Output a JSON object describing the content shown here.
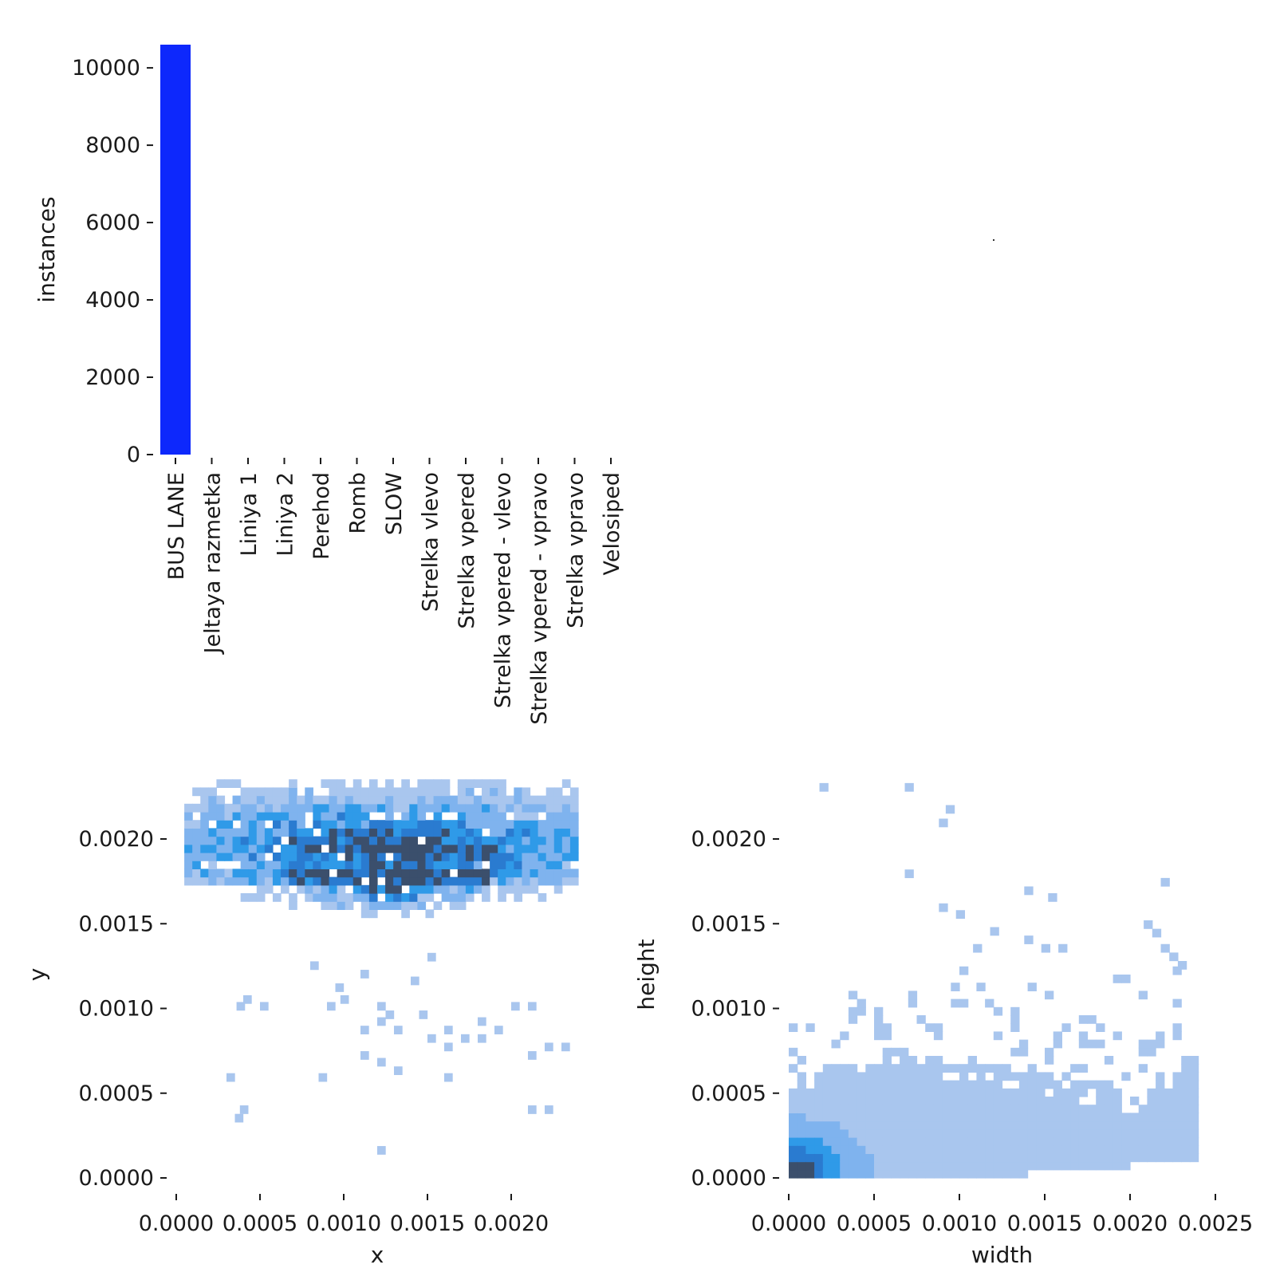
{
  "chart_data": [
    {
      "id": "class_counts",
      "type": "bar",
      "title": "",
      "xlabel": "",
      "ylabel": "instances",
      "ylim": [
        0,
        10600
      ],
      "yticks": [
        0,
        2000,
        4000,
        6000,
        8000,
        10000
      ],
      "ytick_labels": [
        "0",
        "2000",
        "4000",
        "6000",
        "8000",
        "10000"
      ],
      "categories": [
        "BUS LANE",
        "Jeltaya razmetka",
        "Liniya 1",
        "Liniya 2",
        "Perehod",
        "Romb",
        "SLOW",
        "Strelka vlevo",
        "Strelka vpered",
        "Strelka vpered - vlevo",
        "Strelka vpered - vpravo",
        "Strelka vpravo",
        "Velosiped"
      ],
      "values": [
        10600,
        0,
        0,
        0,
        0,
        0,
        0,
        0,
        0,
        0,
        0,
        0,
        0
      ],
      "color": "#0d28fc",
      "grid": false
    },
    {
      "id": "box_preview",
      "type": "scatter",
      "title": "",
      "note_points": [
        [
          0.5,
          0.5
        ]
      ],
      "color": "#333333"
    },
    {
      "id": "xy_hist",
      "type": "heatmap",
      "title": "",
      "xlabel": "x",
      "ylabel": "y",
      "xlim": [
        0,
        0.0024
      ],
      "ylim": [
        0,
        0.0024
      ],
      "xticks": [
        0,
        0.0005,
        0.001,
        0.0015,
        0.002
      ],
      "xtick_labels": [
        "0.0000",
        "0.0005",
        "0.0010",
        "0.0015",
        "0.0020"
      ],
      "yticks": [
        0,
        0.0005,
        0.001,
        0.0015,
        0.002
      ],
      "ytick_labels": [
        "0.0000",
        "0.0005",
        "0.0010",
        "0.0015",
        "0.0020"
      ],
      "bins": 50,
      "dense_region": {
        "x": [
          3e-05,
          0.00238
        ],
        "y": [
          0.00152,
          0.00235
        ],
        "center": [
          0.00128,
          0.00183
        ]
      },
      "sparse_points": [
        [
          0.0004,
          0.00103
        ],
        [
          0.00036,
          0.00099
        ],
        [
          0.0005,
          0.00099
        ],
        [
          0.0009,
          0.00099
        ],
        [
          0.00098,
          0.00103
        ],
        [
          0.0012,
          0.00099
        ],
        [
          0.00125,
          0.00094
        ],
        [
          0.00145,
          0.00094
        ],
        [
          0.0012,
          0.0009
        ],
        [
          0.0013,
          0.00085
        ],
        [
          0.0011,
          0.00085
        ],
        [
          0.0016,
          0.00085
        ],
        [
          0.0018,
          0.0009
        ],
        [
          0.0019,
          0.00085
        ],
        [
          0.002,
          0.00099
        ],
        [
          0.0021,
          0.00099
        ],
        [
          0.0015,
          0.0008
        ],
        [
          0.0017,
          0.0008
        ],
        [
          0.0018,
          0.0008
        ],
        [
          0.0016,
          0.00075
        ],
        [
          0.0022,
          0.00075
        ],
        [
          0.0023,
          0.00075
        ],
        [
          0.0011,
          0.0007
        ],
        [
          0.0012,
          0.00066
        ],
        [
          0.0021,
          0.0007
        ],
        [
          0.0013,
          0.00061
        ],
        [
          0.0003,
          0.00057
        ],
        [
          0.00085,
          0.00057
        ],
        [
          0.0016,
          0.00057
        ],
        [
          0.00038,
          0.00038
        ],
        [
          0.00035,
          0.00033
        ],
        [
          0.0021,
          0.00038
        ],
        [
          0.0022,
          0.00038
        ],
        [
          0.0012,
          0.00014
        ],
        [
          0.0008,
          0.00123
        ],
        [
          0.00095,
          0.0011
        ],
        [
          0.0014,
          0.00114
        ],
        [
          0.0015,
          0.00128
        ],
        [
          0.0011,
          0.00118
        ]
      ],
      "colors": [
        "#a9c6ee",
        "#7fb3ee",
        "#2f9ae8",
        "#2a7bd0",
        "#3b4f6c"
      ],
      "grid": false
    },
    {
      "id": "wh_hist",
      "type": "heatmap",
      "title": "",
      "xlabel": "width",
      "ylabel": "height",
      "xlim": [
        0,
        0.0025
      ],
      "ylim": [
        0,
        0.0024
      ],
      "xticks": [
        0,
        0.0005,
        0.001,
        0.0015,
        0.002,
        0.0025
      ],
      "xtick_labels": [
        "0.0000",
        "0.0005",
        "0.0010",
        "0.0015",
        "0.0020",
        "0.0025"
      ],
      "yticks": [
        0,
        0.0005,
        0.001,
        0.0015,
        0.002
      ],
      "ytick_labels": [
        "0.0000",
        "0.0005",
        "0.0010",
        "0.0015",
        "0.0020"
      ],
      "bins": 50,
      "peak": [
        5e-05,
        5e-05
      ],
      "colors": [
        "#a9c6ee",
        "#7fb3ee",
        "#2f9ae8",
        "#2a7bd0",
        "#3b4f6c"
      ],
      "grid": false
    }
  ]
}
